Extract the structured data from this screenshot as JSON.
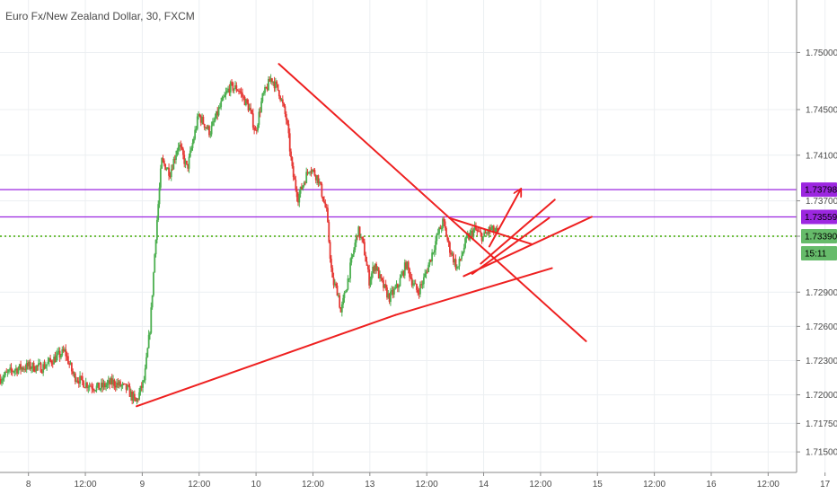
{
  "chart_data": {
    "type": "candlestick",
    "title": "Euro Fx/New Zealand Dollar, 30, FXCM",
    "grid": true,
    "x_domain": [
      0,
      28
    ],
    "x_ticks": [
      {
        "label": "8",
        "x": 0.5
      },
      {
        "label": "12:00",
        "x": 1.5
      },
      {
        "label": "9",
        "x": 2.5
      },
      {
        "label": "12:00",
        "x": 3.5
      },
      {
        "label": "10",
        "x": 4.5
      },
      {
        "label": "12:00",
        "x": 5.5
      },
      {
        "label": "13",
        "x": 6.5
      },
      {
        "label": "12:00",
        "x": 7.5
      },
      {
        "label": "14",
        "x": 8.5
      },
      {
        "label": "12:00",
        "x": 9.5
      },
      {
        "label": "15",
        "x": 10.5
      },
      {
        "label": "12:00",
        "x": 11.5
      },
      {
        "label": "16",
        "x": 12.5
      },
      {
        "label": "12:00",
        "x": 13.5
      },
      {
        "label": "17",
        "x": 14.5
      }
    ],
    "ylim": [
      1.7132,
      1.7546
    ],
    "y_ticks": [
      "1.75000",
      "1.74500",
      "1.74100",
      "1.73700",
      "1.73390",
      "1.72900",
      "1.72600",
      "1.72300",
      "1.72000",
      "1.71750",
      "1.71500"
    ],
    "y_tick_values": [
      1.75,
      1.745,
      1.741,
      1.737,
      1.7339,
      1.729,
      1.726,
      1.723,
      1.72,
      1.7175,
      1.715
    ],
    "price_tags": [
      {
        "label": "1.73798",
        "value": 1.73798,
        "color": "#9c27e0",
        "text_color": "#000000"
      },
      {
        "label": "1.73559",
        "value": 1.73559,
        "color": "#9c27e0",
        "text_color": "#000000"
      },
      {
        "label": "1.73390",
        "value": 1.7339,
        "color": "#66bb6a",
        "text_color": "#000000"
      },
      {
        "label": "15:11",
        "value": 1.7324,
        "color": "#66bb6a",
        "text_color": "#000000"
      }
    ],
    "horizontal_lines": [
      {
        "value": 1.73798,
        "color": "#9c27e0",
        "style": "solid"
      },
      {
        "value": 1.73559,
        "color": "#9c27e0",
        "style": "solid"
      },
      {
        "value": 1.7339,
        "color": "#6fbf40",
        "style": "dotted"
      }
    ],
    "price_path": [
      [
        0.0,
        1.7214
      ],
      [
        0.25,
        1.7222
      ],
      [
        0.5,
        1.7225
      ],
      [
        0.75,
        1.7224
      ],
      [
        1.0,
        1.7233
      ],
      [
        1.15,
        1.7238
      ],
      [
        1.3,
        1.7217
      ],
      [
        1.5,
        1.721
      ],
      [
        1.75,
        1.7206
      ],
      [
        2.0,
        1.7211
      ],
      [
        2.25,
        1.7205
      ],
      [
        2.4,
        1.7193
      ],
      [
        2.55,
        1.7214
      ],
      [
        2.65,
        1.726
      ],
      [
        2.75,
        1.734
      ],
      [
        2.85,
        1.7405
      ],
      [
        3.0,
        1.7395
      ],
      [
        3.15,
        1.742
      ],
      [
        3.3,
        1.7398
      ],
      [
        3.5,
        1.7445
      ],
      [
        3.7,
        1.743
      ],
      [
        3.9,
        1.7455
      ],
      [
        4.05,
        1.747
      ],
      [
        4.2,
        1.7468
      ],
      [
        4.4,
        1.745
      ],
      [
        4.5,
        1.743
      ],
      [
        4.62,
        1.746
      ],
      [
        4.78,
        1.7478
      ],
      [
        4.92,
        1.7465
      ],
      [
        5.05,
        1.744
      ],
      [
        5.15,
        1.7395
      ],
      [
        5.25,
        1.7373
      ],
      [
        5.45,
        1.74
      ],
      [
        5.6,
        1.739
      ],
      [
        5.75,
        1.736
      ],
      [
        5.85,
        1.73
      ],
      [
        5.95,
        1.729
      ],
      [
        6.0,
        1.7272
      ],
      [
        6.1,
        1.7295
      ],
      [
        6.2,
        1.732
      ],
      [
        6.3,
        1.7345
      ],
      [
        6.4,
        1.733
      ],
      [
        6.5,
        1.73
      ],
      [
        6.6,
        1.7315
      ],
      [
        6.7,
        1.73
      ],
      [
        6.85,
        1.7285
      ],
      [
        7.0,
        1.7295
      ],
      [
        7.15,
        1.7315
      ],
      [
        7.25,
        1.73
      ],
      [
        7.35,
        1.729
      ],
      [
        7.45,
        1.73
      ],
      [
        7.55,
        1.7315
      ],
      [
        7.7,
        1.734
      ],
      [
        7.8,
        1.7352
      ],
      [
        7.9,
        1.733
      ],
      [
        8.05,
        1.731
      ],
      [
        8.2,
        1.7335
      ],
      [
        8.35,
        1.7345
      ],
      [
        8.5,
        1.7338
      ],
      [
        8.62,
        1.7345
      ],
      [
        8.75,
        1.7342
      ]
    ],
    "trend_lines": [
      {
        "from": [
          2.4,
          1.719
        ],
        "to": [
          6.95,
          1.727
        ],
        "color": "#ee2020"
      },
      {
        "from": [
          6.95,
          1.727
        ],
        "to": [
          9.7,
          1.7311
        ],
        "color": "#ee2020"
      },
      {
        "from": [
          4.9,
          1.749
        ],
        "to": [
          10.3,
          1.7247
        ],
        "color": "#ee2020"
      },
      {
        "from": [
          7.9,
          1.7355
        ],
        "to": [
          9.35,
          1.7332
        ],
        "color": "#ee2020"
      },
      {
        "from": [
          8.15,
          1.7304
        ],
        "to": [
          10.4,
          1.7356
        ],
        "color": "#ee2020"
      },
      {
        "from": [
          8.3,
          1.7306
        ],
        "to": [
          9.65,
          1.7355
        ],
        "color": "#ee2020"
      },
      {
        "from": [
          8.45,
          1.7315
        ],
        "to": [
          9.75,
          1.7371
        ],
        "color": "#ee2020"
      },
      {
        "from": [
          8.6,
          1.733
        ],
        "to": [
          9.15,
          1.738
        ],
        "color": "#ee2020",
        "arrow": true
      }
    ]
  }
}
